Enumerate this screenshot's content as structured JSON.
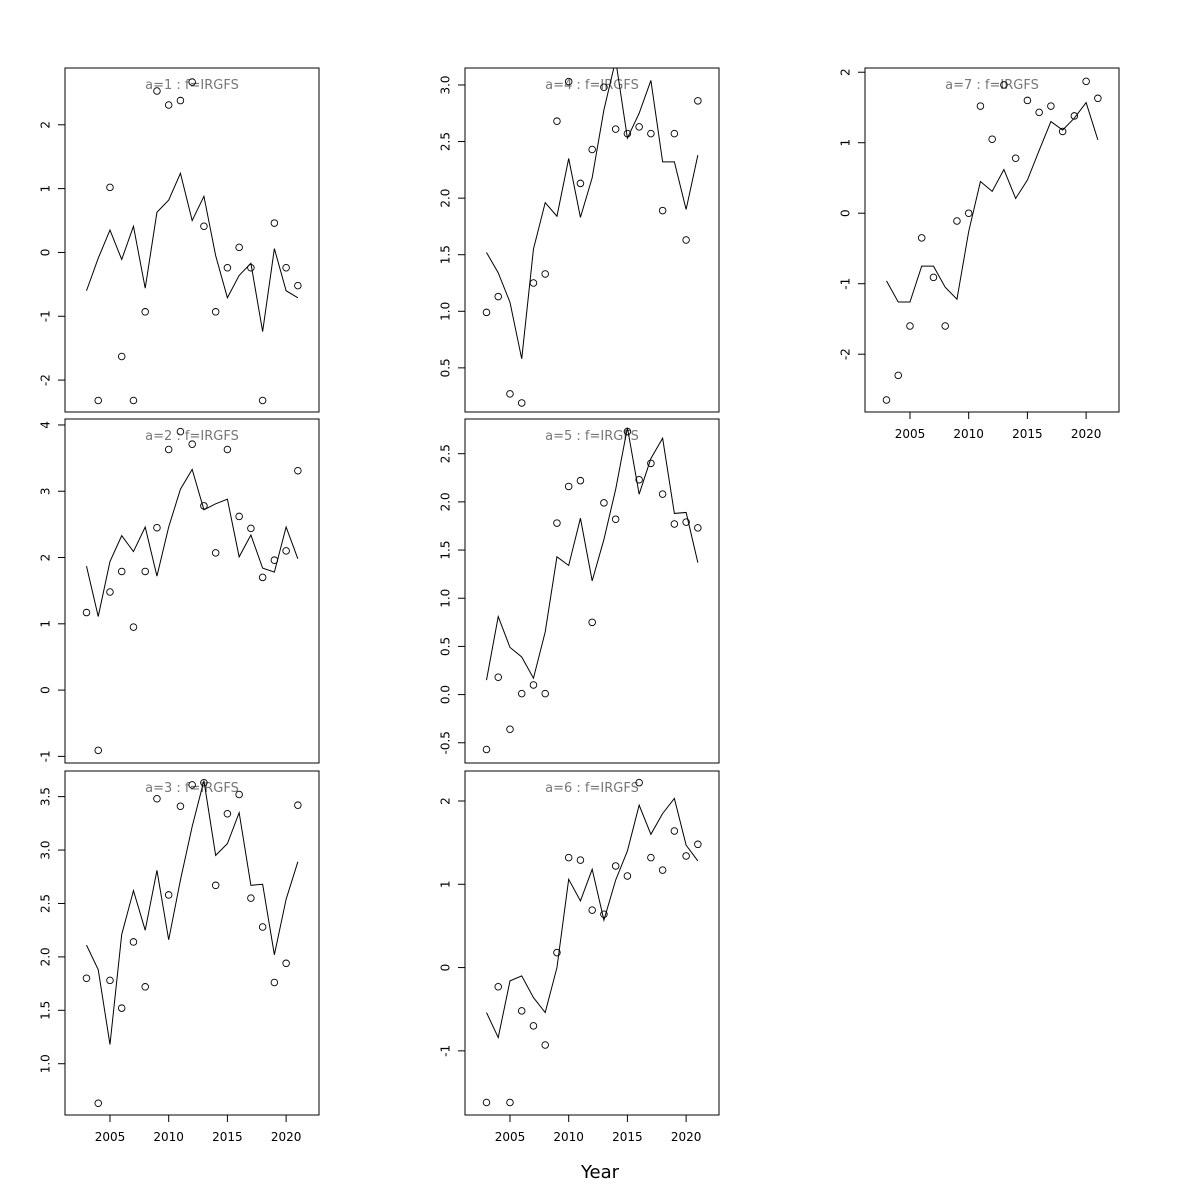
{
  "xlabel": "Year",
  "chart_data": [
    {
      "type": "line",
      "title": "a=1  :  f=IRGFS",
      "x": [
        2003,
        2004,
        2005,
        2006,
        2007,
        2008,
        2009,
        2010,
        2011,
        2012,
        2013,
        2014,
        2015,
        2016,
        2017,
        2018,
        2019,
        2020,
        2021
      ],
      "xlim": [
        2001.17,
        2022.8
      ],
      "ylim": [
        -2.5,
        2.89
      ],
      "yticks": [
        -2,
        -1,
        0,
        1,
        2
      ],
      "series": [
        {
          "style": "points",
          "color": "#000000",
          "values": [
            null,
            -2.32,
            1.02,
            -1.63,
            -2.32,
            -0.93,
            2.53,
            2.31,
            2.38,
            2.67,
            0.41,
            -0.93,
            -0.24,
            0.08,
            -0.24,
            -2.32,
            0.46,
            -0.24,
            -0.52
          ]
        },
        {
          "style": "line",
          "color": "#000000",
          "values": [
            -0.6,
            -0.09,
            0.35,
            -0.11,
            0.41,
            -0.56,
            0.63,
            0.82,
            1.24,
            0.5,
            0.88,
            -0.05,
            -0.71,
            -0.36,
            -0.17,
            -1.24,
            0.06,
            -0.6,
            -0.71
          ]
        }
      ]
    },
    {
      "type": "line",
      "title": "a=2  :  f=IRGFS",
      "x": [
        2003,
        2004,
        2005,
        2006,
        2007,
        2008,
        2009,
        2010,
        2011,
        2012,
        2013,
        2014,
        2015,
        2016,
        2017,
        2018,
        2019,
        2020,
        2021
      ],
      "xlim": [
        2001.17,
        2022.8
      ],
      "ylim": [
        -1.1,
        4.09
      ],
      "yticks": [
        -1,
        0,
        1,
        2,
        3,
        4
      ],
      "series": [
        {
          "style": "points",
          "color": "#000000",
          "values": [
            1.17,
            -0.91,
            1.48,
            1.79,
            0.95,
            1.79,
            2.45,
            3.63,
            3.9,
            3.71,
            2.78,
            2.07,
            3.63,
            2.62,
            2.44,
            1.7,
            1.96,
            2.1,
            3.31
          ]
        },
        {
          "style": "line",
          "color": "#000000",
          "values": [
            1.87,
            1.11,
            1.94,
            2.33,
            2.09,
            2.46,
            1.72,
            2.46,
            3.03,
            3.33,
            2.72,
            2.81,
            2.88,
            2.01,
            2.34,
            1.84,
            1.78,
            2.46,
            1.98
          ]
        }
      ]
    },
    {
      "type": "line",
      "title": "a=3  :  f=IRGFS",
      "x": [
        2003,
        2004,
        2005,
        2006,
        2007,
        2008,
        2009,
        2010,
        2011,
        2012,
        2013,
        2014,
        2015,
        2016,
        2017,
        2018,
        2019,
        2020,
        2021
      ],
      "xlim": [
        2001.17,
        2022.8
      ],
      "xticks": [
        2005,
        2010,
        2015,
        2020
      ],
      "ylim": [
        0.52,
        3.74
      ],
      "yticks": [
        {
          "value": 1,
          "label": "1.0"
        },
        1.5,
        {
          "value": 2,
          "label": "2.0"
        },
        2.5,
        {
          "value": 3,
          "label": "3.0"
        },
        3.5
      ],
      "series": [
        {
          "style": "points",
          "color": "#000000",
          "values": [
            1.8,
            0.63,
            1.78,
            1.52,
            2.14,
            1.72,
            3.48,
            2.58,
            3.41,
            3.61,
            3.63,
            2.67,
            3.34,
            3.52,
            2.55,
            2.28,
            1.76,
            1.94,
            3.42
          ]
        },
        {
          "style": "line",
          "color": "#000000",
          "values": [
            2.11,
            1.88,
            1.18,
            2.21,
            2.62,
            2.25,
            2.81,
            2.16,
            2.72,
            3.22,
            3.65,
            2.95,
            3.06,
            3.35,
            2.67,
            2.68,
            2.02,
            2.54,
            2.89
          ]
        }
      ]
    },
    {
      "type": "line",
      "title": "a=4  :  f=IRGFS",
      "x": [
        2003,
        2004,
        2005,
        2006,
        2007,
        2008,
        2009,
        2010,
        2011,
        2012,
        2013,
        2014,
        2015,
        2016,
        2017,
        2018,
        2019,
        2020,
        2021
      ],
      "xlim": [
        2001.17,
        2022.8
      ],
      "ylim": [
        0.11,
        3.15
      ],
      "yticks": [
        0.5,
        {
          "value": 1,
          "label": "1.0"
        },
        1.5,
        {
          "value": 2,
          "label": "2.0"
        },
        2.5,
        {
          "value": 3,
          "label": "3.0"
        }
      ],
      "series": [
        {
          "style": "points",
          "color": "#000000",
          "values": [
            0.99,
            1.13,
            0.27,
            0.19,
            1.25,
            1.33,
            2.68,
            3.03,
            2.13,
            2.43,
            2.98,
            2.61,
            2.57,
            2.63,
            2.57,
            1.89,
            2.57,
            1.63,
            2.86
          ]
        },
        {
          "style": "line",
          "color": "#000000",
          "values": [
            1.52,
            1.34,
            1.08,
            0.58,
            1.55,
            1.96,
            1.84,
            2.35,
            1.83,
            2.18,
            2.78,
            3.22,
            2.53,
            2.75,
            3.04,
            2.32,
            2.32,
            1.9,
            2.38
          ]
        }
      ]
    },
    {
      "type": "line",
      "title": "a=5  :  f=IRGFS",
      "x": [
        2003,
        2004,
        2005,
        2006,
        2007,
        2008,
        2009,
        2010,
        2011,
        2012,
        2013,
        2014,
        2015,
        2016,
        2017,
        2018,
        2019,
        2020,
        2021
      ],
      "xlim": [
        2001.17,
        2022.8
      ],
      "ylim": [
        -0.71,
        2.86
      ],
      "yticks": [
        -0.5,
        {
          "value": 0,
          "label": "0.0"
        },
        0.5,
        {
          "value": 1,
          "label": "1.0"
        },
        1.5,
        {
          "value": 2,
          "label": "2.0"
        },
        2.5
      ],
      "series": [
        {
          "style": "points",
          "color": "#000000",
          "values": [
            -0.57,
            0.18,
            -0.36,
            0.01,
            0.1,
            0.01,
            1.78,
            2.16,
            2.22,
            0.75,
            1.99,
            1.82,
            2.73,
            2.23,
            2.4,
            2.08,
            1.77,
            1.79,
            1.73
          ]
        },
        {
          "style": "line",
          "color": "#000000",
          "values": [
            0.15,
            0.81,
            0.49,
            0.39,
            0.17,
            0.65,
            1.43,
            1.34,
            1.83,
            1.18,
            1.61,
            2.13,
            2.77,
            2.08,
            2.45,
            2.66,
            1.88,
            1.89,
            1.37
          ]
        }
      ]
    },
    {
      "type": "line",
      "title": "a=6  :  f=IRGFS",
      "x": [
        2003,
        2004,
        2005,
        2006,
        2007,
        2008,
        2009,
        2010,
        2011,
        2012,
        2013,
        2014,
        2015,
        2016,
        2017,
        2018,
        2019,
        2020,
        2021
      ],
      "xlim": [
        2001.17,
        2022.8
      ],
      "xticks": [
        2005,
        2010,
        2015,
        2020
      ],
      "ylim": [
        -1.77,
        2.36
      ],
      "yticks": [
        -1,
        0,
        1,
        2
      ],
      "series": [
        {
          "style": "points",
          "color": "#000000",
          "values": [
            -1.62,
            -0.23,
            -1.62,
            -0.52,
            -0.7,
            -0.93,
            0.18,
            1.32,
            1.29,
            0.69,
            0.64,
            1.22,
            1.1,
            2.22,
            1.32,
            1.17,
            1.64,
            1.34,
            1.48
          ]
        },
        {
          "style": "line",
          "color": "#000000",
          "values": [
            -0.54,
            -0.84,
            -0.16,
            -0.1,
            -0.36,
            -0.54,
            0,
            1.06,
            0.8,
            1.18,
            0.57,
            1.05,
            1.4,
            1.95,
            1.6,
            1.85,
            2.03,
            1.47,
            1.28
          ]
        }
      ]
    },
    {
      "type": "line",
      "title": "a=7  :  f=IRGFS",
      "x": [
        2003,
        2004,
        2005,
        2006,
        2007,
        2008,
        2009,
        2010,
        2011,
        2012,
        2013,
        2014,
        2015,
        2016,
        2017,
        2018,
        2019,
        2020,
        2021
      ],
      "xlim": [
        2001.17,
        2022.8
      ],
      "xticks": [
        2005,
        2010,
        2015,
        2020
      ],
      "ylim": [
        -2.82,
        2.06
      ],
      "yticks": [
        -2,
        -1,
        0,
        1,
        2
      ],
      "series": [
        {
          "style": "points",
          "color": "#000000",
          "values": [
            -2.65,
            -2.3,
            -1.6,
            -0.35,
            -0.91,
            -1.6,
            -0.11,
            0,
            1.52,
            1.05,
            1.82,
            0.78,
            1.6,
            1.43,
            1.52,
            1.16,
            1.38,
            1.87,
            1.63
          ]
        },
        {
          "style": "line",
          "color": "#000000",
          "values": [
            -0.96,
            -1.26,
            -1.26,
            -0.75,
            -0.75,
            -1.05,
            -1.22,
            -0.26,
            0.45,
            0.31,
            0.62,
            0.21,
            0.47,
            0.89,
            1.3,
            1.18,
            1.35,
            1.57,
            1.04
          ]
        }
      ]
    }
  ]
}
